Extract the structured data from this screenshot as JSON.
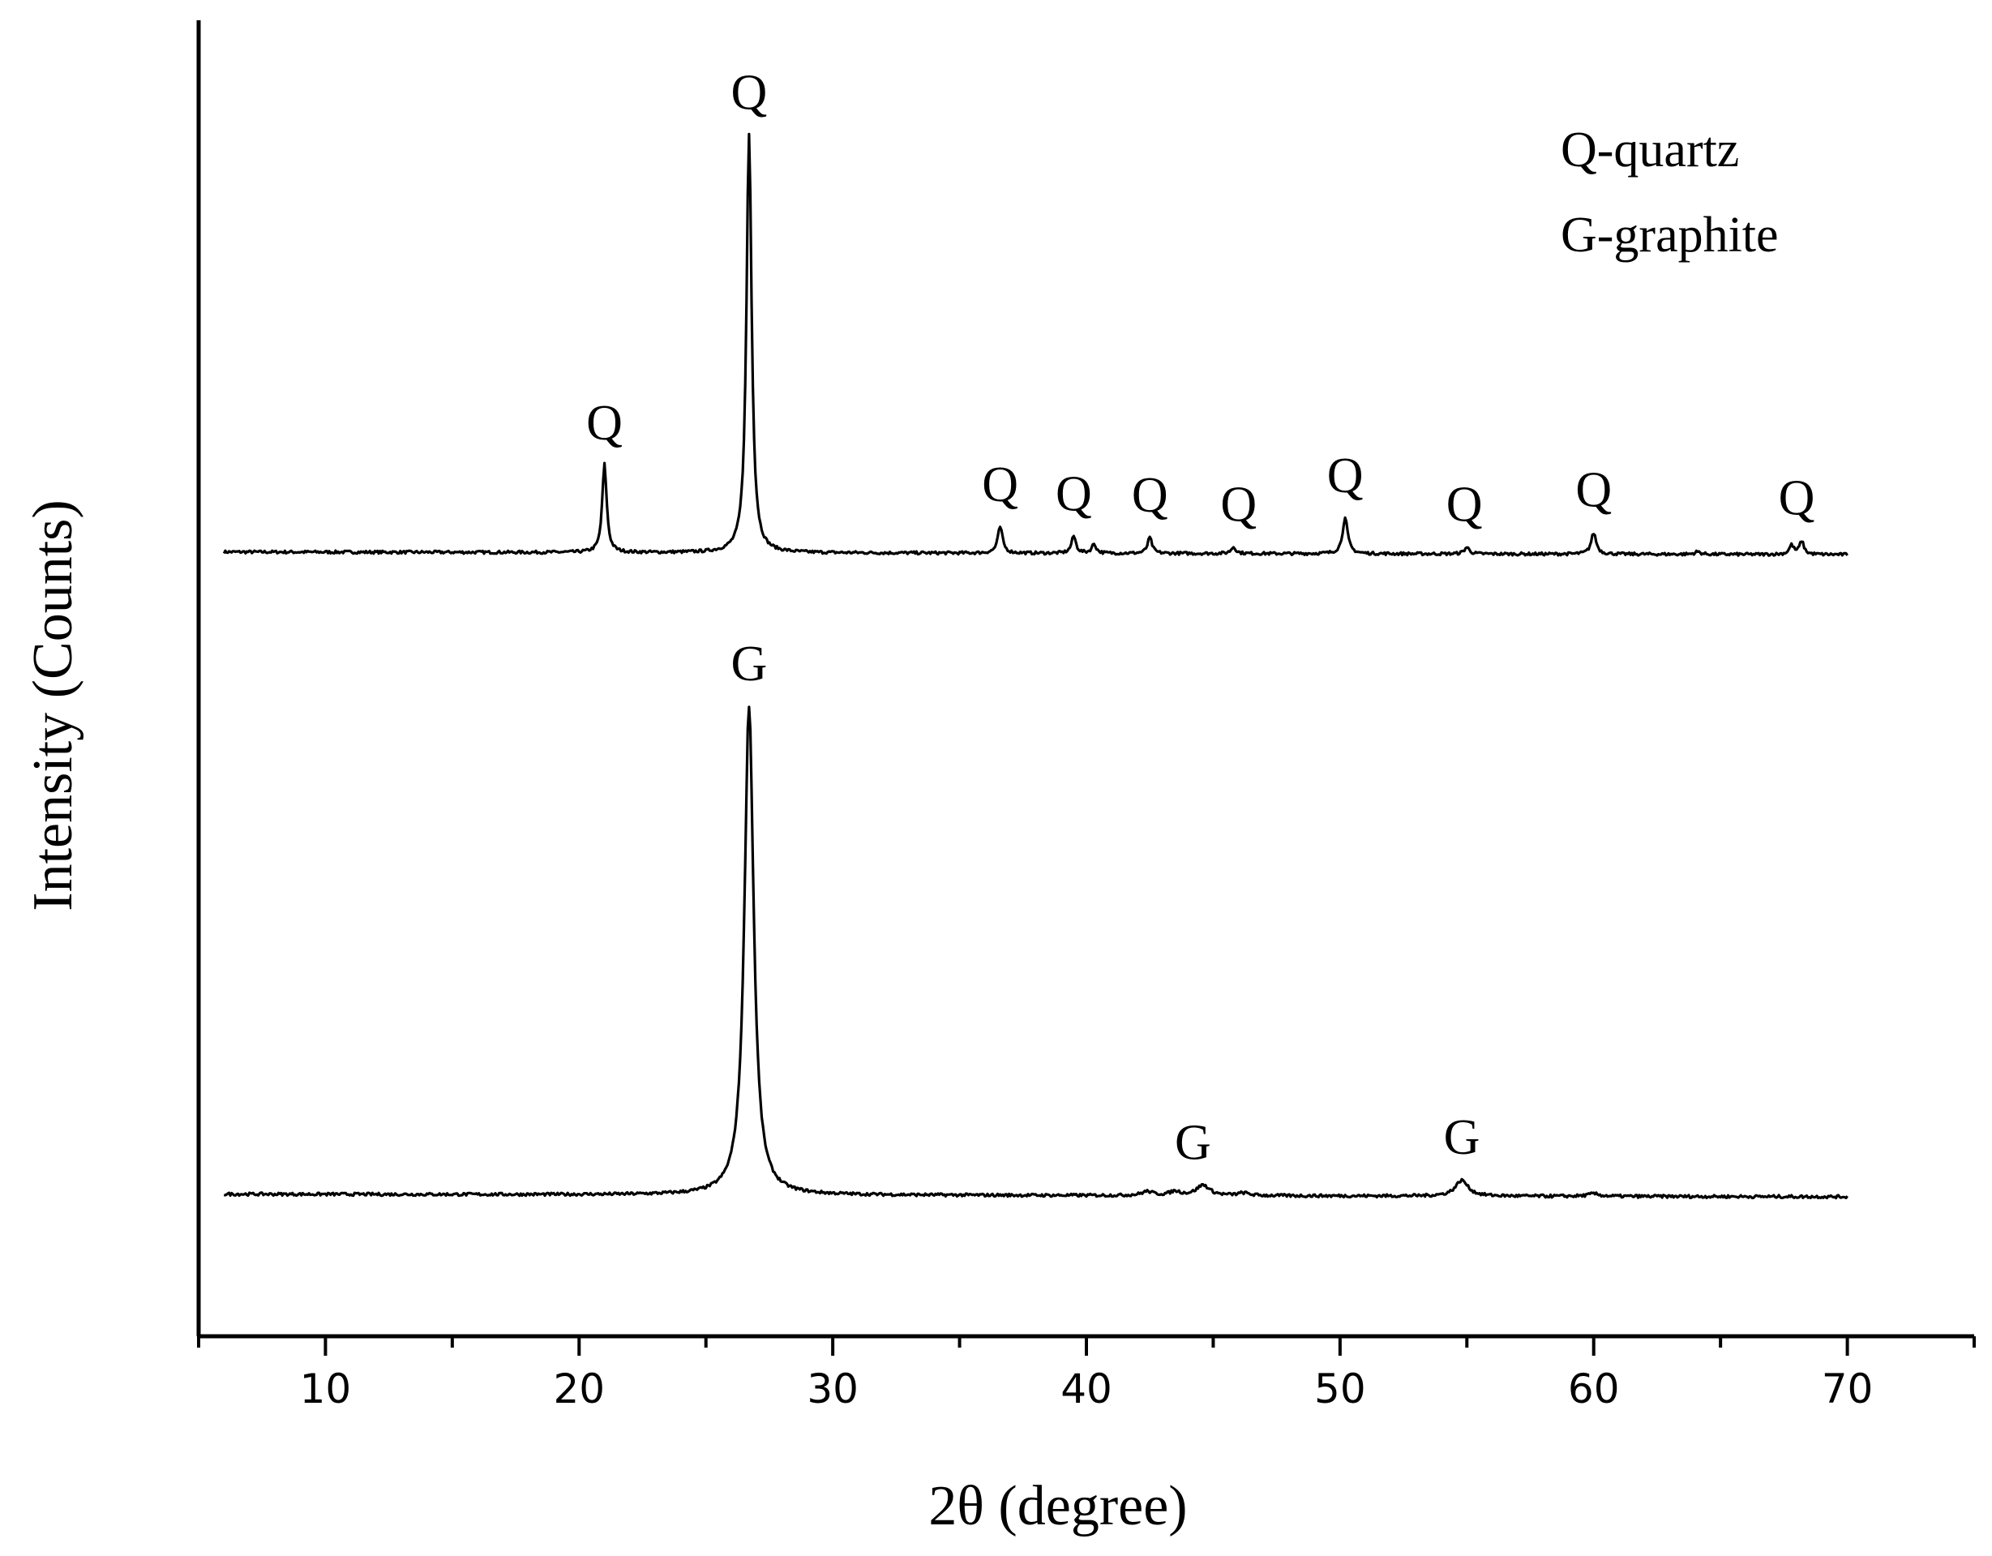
{
  "chart_data": {
    "type": "line",
    "title": "",
    "xlabel": "2θ (degree)",
    "ylabel": "Intensity (Counts)",
    "xlim": [
      5,
      75
    ],
    "x_ticks": [
      10,
      20,
      30,
      40,
      50,
      60,
      70
    ],
    "x_minor_step": 5,
    "y_ticks_shown": false,
    "grid": false,
    "legend": {
      "position": "top-right",
      "entries": [
        "Q-quartz",
        "G-graphite"
      ]
    },
    "series": [
      {
        "baseline": 0.596,
        "peaks": [
          {
            "x": 21.0,
            "height": 0.067,
            "width": 0.12
          },
          {
            "x": 26.7,
            "height": 0.318,
            "width": 0.14
          },
          {
            "x": 36.6,
            "height": 0.02,
            "width": 0.13
          },
          {
            "x": 39.5,
            "height": 0.013,
            "width": 0.12
          },
          {
            "x": 40.3,
            "height": 0.007,
            "width": 0.12
          },
          {
            "x": 42.5,
            "height": 0.012,
            "width": 0.12
          },
          {
            "x": 45.8,
            "height": 0.005,
            "width": 0.13
          },
          {
            "x": 50.2,
            "height": 0.027,
            "width": 0.14
          },
          {
            "x": 55.0,
            "height": 0.005,
            "width": 0.14
          },
          {
            "x": 60.0,
            "height": 0.016,
            "width": 0.14
          },
          {
            "x": 64.1,
            "height": 0.002,
            "width": 0.15
          },
          {
            "x": 67.8,
            "height": 0.007,
            "width": 0.12
          },
          {
            "x": 68.2,
            "height": 0.01,
            "width": 0.12
          }
        ],
        "labels": [
          {
            "x": 21.0,
            "text": "Q"
          },
          {
            "x": 26.7,
            "text": "Q"
          },
          {
            "x": 36.6,
            "text": "Q"
          },
          {
            "x": 39.5,
            "text": "Q"
          },
          {
            "x": 42.5,
            "text": "Q"
          },
          {
            "x": 46.0,
            "text": "Q"
          },
          {
            "x": 50.2,
            "text": "Q"
          },
          {
            "x": 54.9,
            "text": "Q"
          },
          {
            "x": 60.0,
            "text": "Q"
          },
          {
            "x": 68.0,
            "text": "Q"
          }
        ]
      },
      {
        "baseline": 0.108,
        "peaks": [
          {
            "x": 26.7,
            "height": 0.372,
            "width": 0.25
          },
          {
            "x": 42.4,
            "height": 0.003,
            "width": 0.3
          },
          {
            "x": 43.5,
            "height": 0.003,
            "width": 0.3
          },
          {
            "x": 44.6,
            "height": 0.008,
            "width": 0.35
          },
          {
            "x": 46.2,
            "height": 0.002,
            "width": 0.3
          },
          {
            "x": 54.8,
            "height": 0.012,
            "width": 0.35
          },
          {
            "x": 60.0,
            "height": 0.002,
            "width": 0.3
          }
        ],
        "labels": [
          {
            "x": 26.7,
            "text": "G"
          },
          {
            "x": 44.2,
            "text": "G"
          },
          {
            "x": 54.8,
            "text": "G"
          }
        ]
      }
    ]
  }
}
